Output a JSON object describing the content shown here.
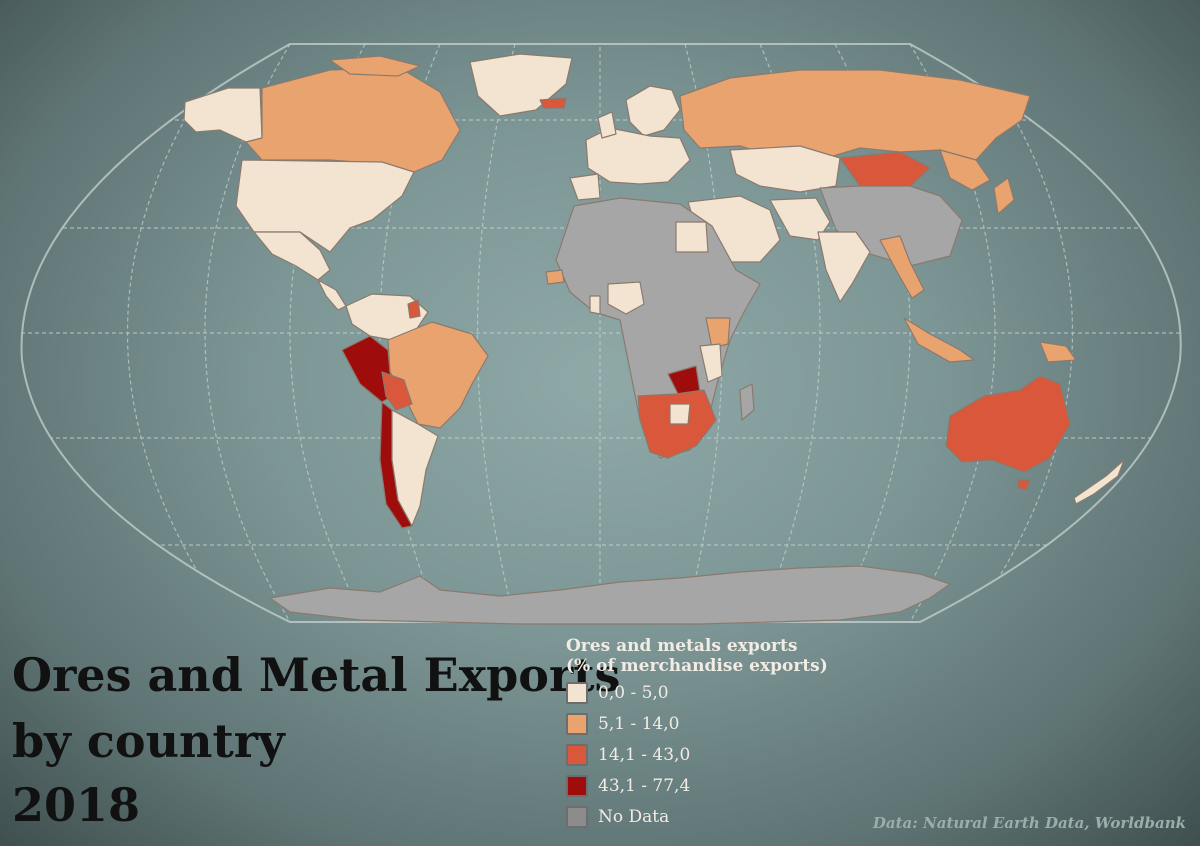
{
  "title": {
    "line1": "Ores and Metal Exports",
    "line2": "by country",
    "line3": "2018"
  },
  "legend": {
    "title_line1": "Ores and metals exports",
    "title_line2": "(% of merchandise exports)",
    "items": [
      {
        "label": "0,0 - 5,0",
        "color": "#f3e3d1"
      },
      {
        "label": "5,1 - 14,0",
        "color": "#e9a36f"
      },
      {
        "label": "14,1 - 43,0",
        "color": "#d9573a"
      },
      {
        "label": "43,1 - 77,4",
        "color": "#9e0c0c"
      },
      {
        "label": "No Data",
        "color": "#8c8c8c"
      }
    ]
  },
  "source": "Data: Natural Earth Data, Worldbank",
  "colors": {
    "ocean": "#83a0a0",
    "graticule": "#c7d3d2",
    "border": "#8a7a6e"
  }
}
